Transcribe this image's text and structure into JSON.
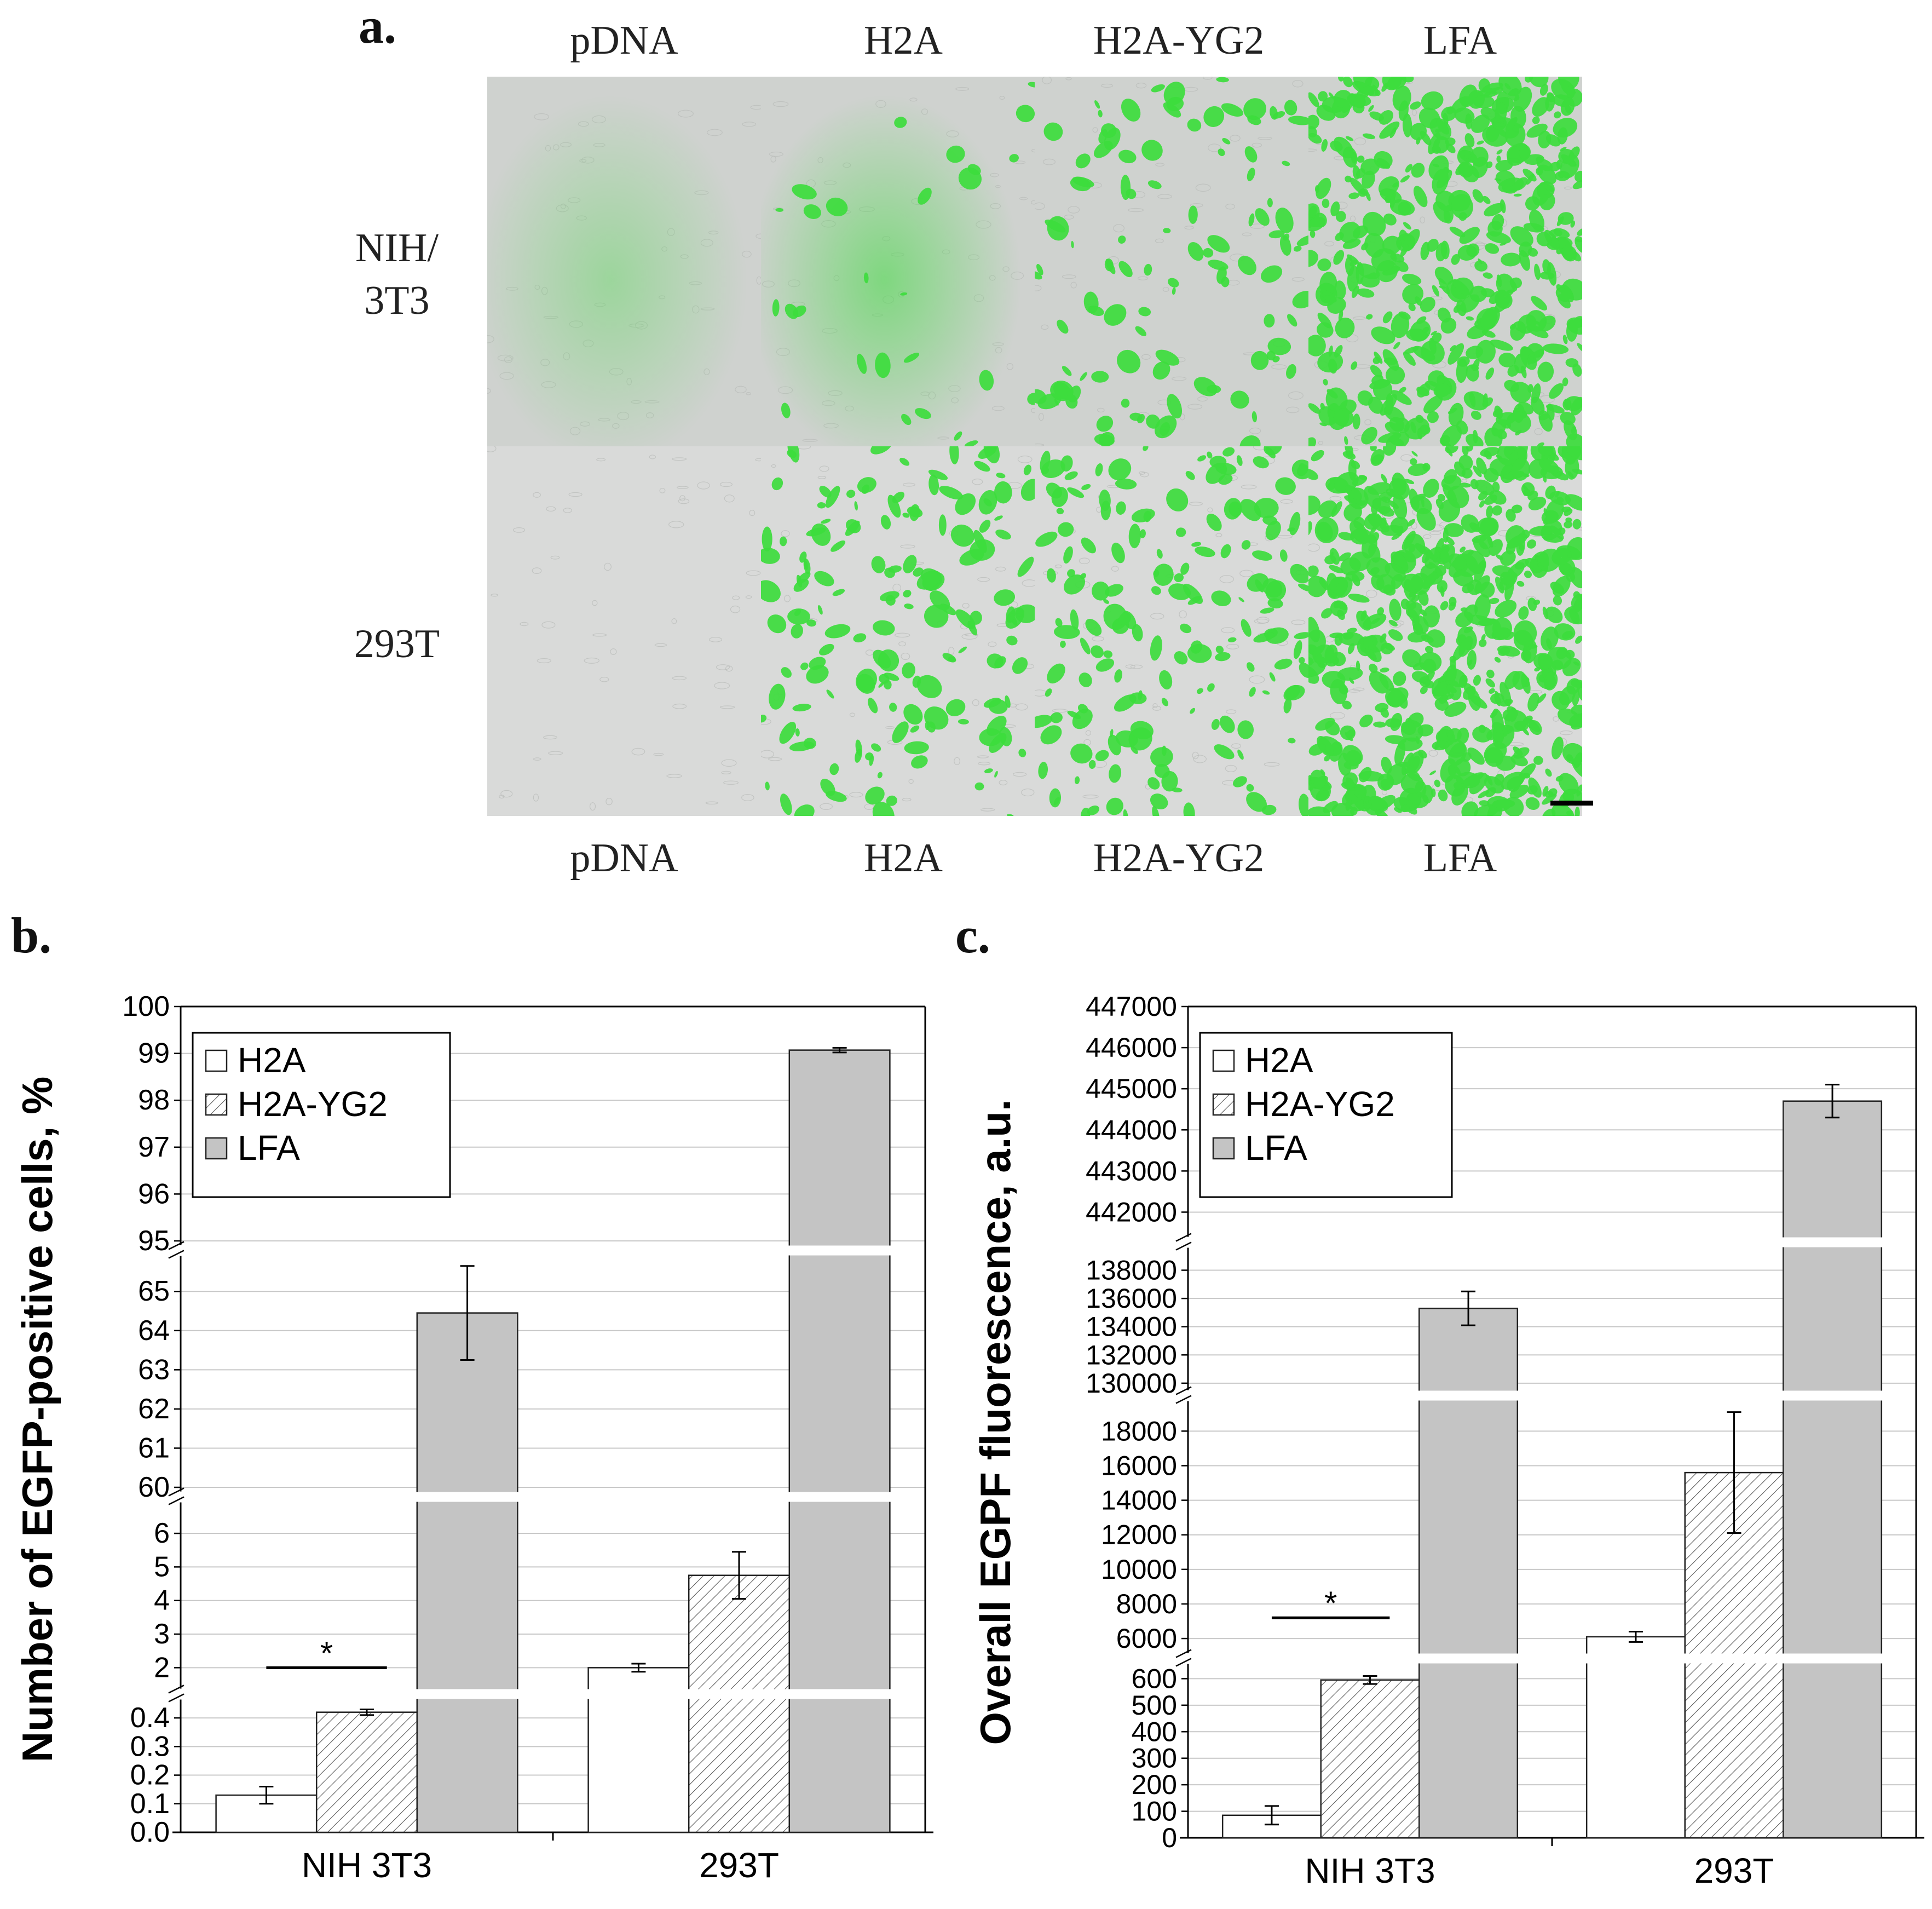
{
  "panel_a": {
    "label": "a.",
    "column_labels_top": [
      "pDNA",
      "H2A",
      "H2A-YG2",
      "LFA"
    ],
    "column_labels_bottom": [
      "pDNA",
      "H2A",
      "H2A-YG2",
      "LFA"
    ],
    "row_labels": [
      [
        "NIH/",
        "3T3"
      ],
      [
        "293T"
      ]
    ],
    "colors": {
      "background": "#d6d8d6",
      "gfp": "#3ddc3d"
    },
    "micrographs": [
      {
        "row": 0,
        "col": 0,
        "icon": "brightfield-micrograph",
        "gfp_coverage": 0.0,
        "diffuse_glow": 0.35
      },
      {
        "row": 0,
        "col": 1,
        "icon": "gfp-micrograph",
        "gfp_coverage": 0.03,
        "diffuse_glow": 0.55
      },
      {
        "row": 0,
        "col": 2,
        "icon": "gfp-micrograph",
        "gfp_coverage": 0.12,
        "diffuse_glow": 0.0
      },
      {
        "row": 0,
        "col": 3,
        "icon": "gfp-micrograph",
        "gfp_coverage": 0.55,
        "diffuse_glow": 0.0
      },
      {
        "row": 1,
        "col": 0,
        "icon": "brightfield-micrograph",
        "gfp_coverage": 0.0,
        "diffuse_glow": 0.0
      },
      {
        "row": 1,
        "col": 1,
        "icon": "gfp-micrograph",
        "gfp_coverage": 0.18,
        "diffuse_glow": 0.0
      },
      {
        "row": 1,
        "col": 2,
        "icon": "gfp-micrograph",
        "gfp_coverage": 0.2,
        "diffuse_glow": 0.0
      },
      {
        "row": 1,
        "col": 3,
        "icon": "gfp-micrograph",
        "gfp_coverage": 0.7,
        "diffuse_glow": 0.0
      }
    ]
  },
  "chart_data": [
    {
      "panel": "b.",
      "type": "bar",
      "ylabel": "Number of EGFP-positive cells, %",
      "categories": [
        "NIH 3T3",
        "293T"
      ],
      "series": [
        {
          "name": "H2A",
          "pattern": "open",
          "values": [
            0.13,
            2.0
          ],
          "errors": [
            0.03,
            0.12
          ]
        },
        {
          "name": "H2A-YG2",
          "pattern": "hatched",
          "values": [
            0.42,
            4.75
          ],
          "errors": [
            0.01,
            0.7
          ]
        },
        {
          "name": "LFA",
          "pattern": "grey",
          "values": [
            64.45,
            99.07
          ],
          "errors": [
            1.2,
            0.05
          ]
        }
      ],
      "broken_axis_segments": [
        {
          "range": [
            0.0,
            0.45
          ],
          "ticks": [
            "0.0",
            "0.1",
            "0.2",
            "0.3",
            "0.4"
          ]
        },
        {
          "range": [
            1.5,
            6.8
          ],
          "ticks": [
            "2",
            "3",
            "4",
            "5",
            "6"
          ]
        },
        {
          "range": [
            60,
            65.8
          ],
          "ticks": [
            "60",
            "61",
            "62",
            "63",
            "64",
            "65"
          ]
        },
        {
          "range": [
            95,
            100
          ],
          "ticks": [
            "95",
            "96",
            "97",
            "98",
            "99",
            "100"
          ]
        }
      ],
      "significance": [
        {
          "category": "NIH 3T3",
          "value": 2.0,
          "label": "*"
        }
      ],
      "legend": "top-left",
      "grid": true
    },
    {
      "panel": "c.",
      "type": "bar",
      "ylabel": "Overall EGPF fluorescence, a.u.",
      "categories": [
        "NIH 3T3",
        "293T"
      ],
      "series": [
        {
          "name": "H2A",
          "pattern": "open",
          "values": [
            85,
            6100
          ],
          "errors": [
            35,
            300
          ]
        },
        {
          "name": "H2A-YG2",
          "pattern": "hatched",
          "values": [
            595,
            15600
          ],
          "errors": [
            15,
            3500
          ]
        },
        {
          "name": "LFA",
          "pattern": "grey",
          "values": [
            135300,
            444700
          ],
          "errors": [
            1200,
            400
          ]
        }
      ],
      "broken_axis_segments": [
        {
          "range": [
            0,
            640
          ],
          "ticks": [
            "0",
            "100",
            "200",
            "300",
            "400",
            "500",
            "600"
          ]
        },
        {
          "range": [
            5400,
            19500
          ],
          "ticks": [
            "6000",
            "8000",
            "10000",
            "12000",
            "14000",
            "16000",
            "18000"
          ]
        },
        {
          "range": [
            129800,
            139300
          ],
          "ticks": [
            "130000",
            "132000",
            "134000",
            "136000",
            "138000"
          ]
        },
        {
          "range": [
            441500,
            447000
          ],
          "ticks": [
            "442000",
            "443000",
            "444000",
            "445000",
            "446000",
            "447000"
          ]
        }
      ],
      "significance": [
        {
          "category": "NIH 3T3",
          "value": 7200,
          "label": "*"
        }
      ],
      "legend": "top-left",
      "grid": true
    }
  ]
}
